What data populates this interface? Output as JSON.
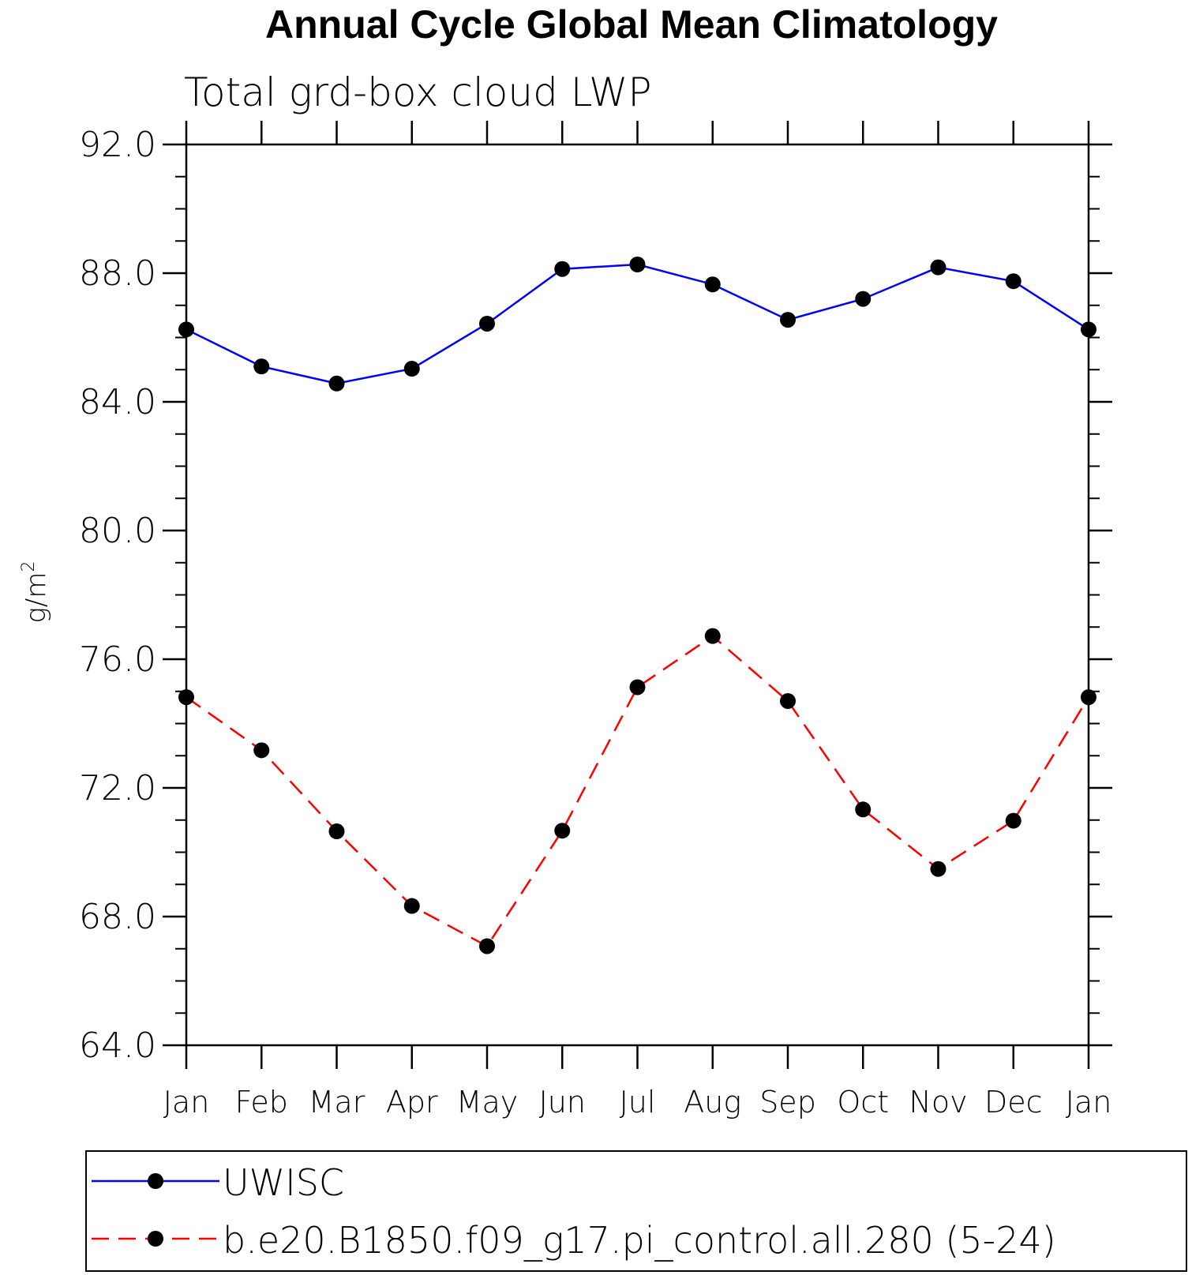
{
  "chart_data": {
    "type": "line",
    "title": "Annual Cycle Global Mean Climatology",
    "subtitle": "Total grd-box cloud LWP",
    "ylabel": "g/m",
    "ylabel_superscript": "2",
    "xlabel": "",
    "categories": [
      "Jan",
      "Feb",
      "Mar",
      "Apr",
      "May",
      "Jun",
      "Jul",
      "Aug",
      "Sep",
      "Oct",
      "Nov",
      "Dec",
      "Jan"
    ],
    "ylim": [
      64.0,
      92.0
    ],
    "yticks": [
      "64.0",
      "68.0",
      "72.0",
      "76.0",
      "80.0",
      "84.0",
      "88.0",
      "92.0"
    ],
    "ytick_values": [
      64,
      68,
      72,
      76,
      80,
      84,
      88,
      92
    ],
    "series": [
      {
        "name": "UWISC",
        "color": "#0000ff",
        "style": "solid",
        "marker": "circle",
        "values": [
          86.25,
          85.1,
          84.57,
          85.03,
          86.43,
          88.13,
          88.27,
          87.65,
          86.55,
          87.2,
          88.18,
          87.75,
          86.25
        ]
      },
      {
        "name": "b.e20.B1850.f09_g17.pi_control.all.280 (5-24)",
        "color": "#ff0000",
        "style": "dashed",
        "marker": "circle",
        "values": [
          74.82,
          73.17,
          70.65,
          68.33,
          67.08,
          70.67,
          75.13,
          76.72,
          74.7,
          71.33,
          69.48,
          70.98,
          74.82
        ]
      }
    ],
    "legend_position": "bottom",
    "grid": false
  }
}
